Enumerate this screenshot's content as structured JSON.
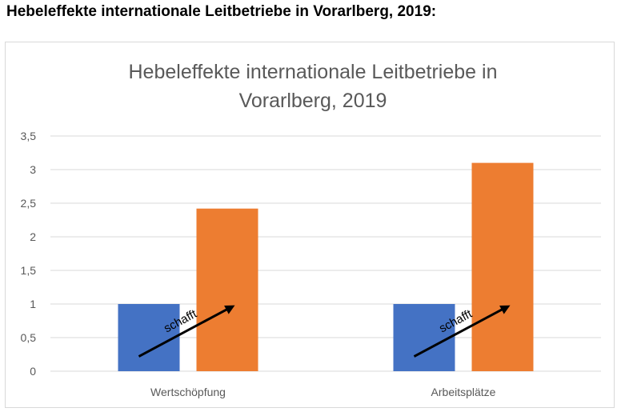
{
  "heading": "Hebeleffekte internationale Leitbetriebe in Vorarlberg, 2019:",
  "colors": {
    "series_a": "#4472c4",
    "series_b": "#ed7d31",
    "grid": "#d9d9d9",
    "text": "#595959"
  },
  "chart_data": {
    "type": "bar",
    "title_lines": [
      "Hebeleffekte internationale Leitbetriebe in",
      "Vorarlberg, 2019"
    ],
    "categories": [
      "Wertschöpfung",
      "Arbeitsplätze"
    ],
    "series": [
      {
        "values": [
          1,
          1
        ]
      },
      {
        "values": [
          2.42,
          3.1
        ]
      }
    ],
    "ylim": [
      0,
      3.5
    ],
    "yticks": [
      0,
      0.5,
      1,
      1.5,
      2,
      2.5,
      3,
      3.5
    ],
    "ytick_labels": [
      "0",
      "0,5",
      "1",
      "1,5",
      "2",
      "2,5",
      "3",
      "3,5"
    ],
    "grid": true,
    "annotations": [
      "schafft",
      "schafft"
    ]
  }
}
